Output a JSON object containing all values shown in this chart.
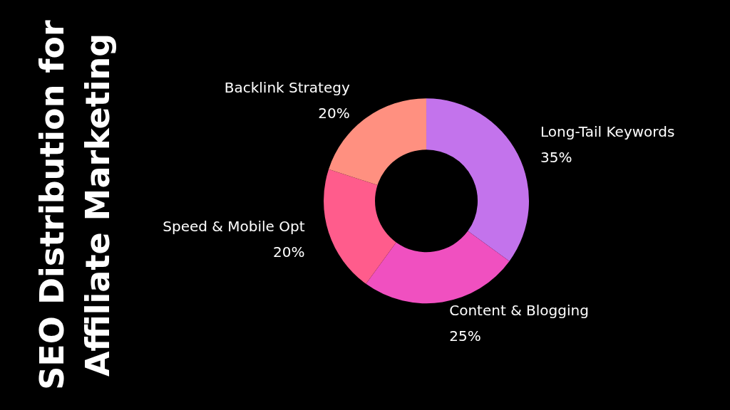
{
  "chart_data": {
    "type": "donut",
    "title": "SEO Distribution for\nAffiliate Marketing",
    "categories": [
      "Long-Tail Keywords",
      "Content & Blogging",
      "Speed & Mobile Opt",
      "Backlink Strategy"
    ],
    "values": [
      35,
      25,
      20,
      20
    ],
    "value_labels": [
      "35%",
      "25%",
      "20%",
      "20%"
    ],
    "colors": [
      "#c373ec",
      "#f050c0",
      "#ff5c8c",
      "#ff9080"
    ],
    "legend": false
  }
}
